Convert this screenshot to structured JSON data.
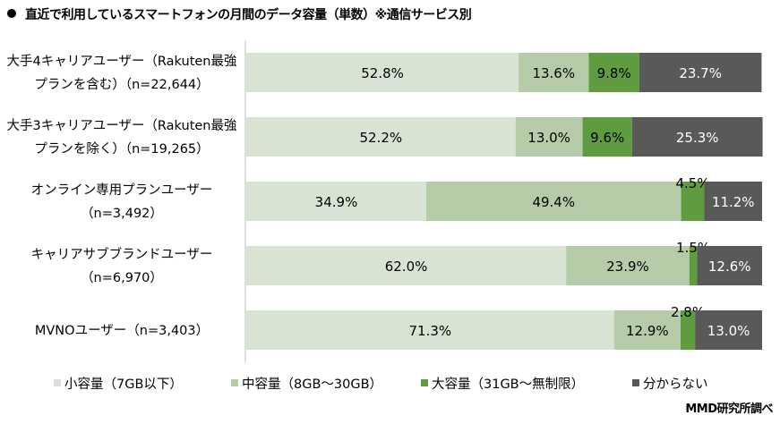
{
  "title": "直近で利用しているスマートフォンの月間のデータ容量（単数）※通信サービス別",
  "source": "MMD研究所調べ",
  "chart_data": {
    "type": "bar",
    "orientation": "horizontal",
    "stacked": "percent",
    "categories": [
      [
        "大手4キャリアユーザー（Rakuten最強",
        "プランを含む）（n=22,644）"
      ],
      [
        "大手3キャリアユーザー（Rakuten最強",
        "プランを除く）（n=19,265）"
      ],
      [
        "オンライン専用プランユーザー",
        "（n=3,492）"
      ],
      [
        "キャリアサブブランドユーザー",
        "（n=6,970）"
      ],
      [
        "MVNOユーザー（n=3,403）"
      ]
    ],
    "series": [
      {
        "name": "小容量（7GB以下）",
        "color": "#d9e3d4",
        "values": [
          52.8,
          52.2,
          34.9,
          62.0,
          71.3
        ]
      },
      {
        "name": "中容量（8GB〜30GB）",
        "color": "#b6cca8",
        "values": [
          13.6,
          13.0,
          49.4,
          23.9,
          12.9
        ]
      },
      {
        "name": "大容量（31GB〜無制限）",
        "color": "#5f9c3f",
        "values": [
          9.8,
          9.6,
          4.5,
          1.5,
          2.8
        ]
      },
      {
        "name": "分からない",
        "color": "#595959",
        "values": [
          23.7,
          25.3,
          11.2,
          12.6,
          13.0
        ]
      }
    ],
    "xlim": [
      0,
      100
    ],
    "legend": "bottom",
    "grid": false
  }
}
